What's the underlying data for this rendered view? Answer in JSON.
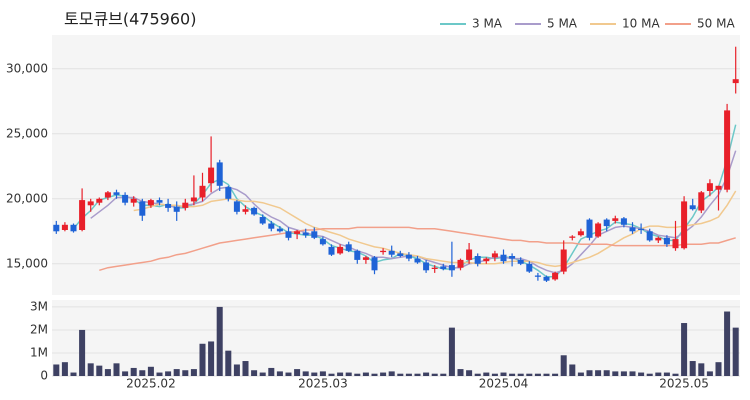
{
  "chart_data": [
    {
      "type": "candlestick",
      "title": "토모큐브(475960)",
      "up_color": "#e8202a",
      "down_color": "#1f63d6",
      "legend": "top-right",
      "open": [
        18000,
        17600,
        18000,
        17600,
        19500,
        19700,
        20100,
        20500,
        20300,
        19700,
        19800,
        19500,
        19900,
        19600,
        19400,
        19300,
        19800,
        20100,
        21200,
        22800,
        20900,
        19800,
        19000,
        19300,
        18600,
        18100,
        17700,
        17500,
        17300,
        17400,
        17500,
        16900,
        16300,
        15800,
        16500,
        16000,
        15300,
        15500,
        15900,
        16000,
        15800,
        15700,
        15400,
        15100,
        14600,
        14800,
        14900,
        14700,
        15300,
        15600,
        15200,
        15500,
        15700,
        15600,
        15300,
        15000,
        14100,
        14000,
        13800,
        14400,
        17000,
        17200,
        18400,
        17100,
        18400,
        18300,
        18500,
        17800,
        17700,
        17500,
        16800,
        17000,
        16200,
        16200,
        19500,
        19100,
        20600,
        20700,
        20700,
        28900
      ],
      "high": [
        18300,
        18200,
        18100,
        20800,
        20000,
        20100,
        20600,
        20700,
        20500,
        20200,
        20000,
        20000,
        20100,
        20000,
        19800,
        20000,
        21800,
        22000,
        24800,
        23000,
        21000,
        19900,
        19500,
        19400,
        18800,
        18300,
        17900,
        17800,
        17600,
        17700,
        17800,
        17100,
        16500,
        16500,
        16700,
        16100,
        15600,
        15600,
        16200,
        16400,
        16000,
        15900,
        15600,
        15300,
        14900,
        15000,
        16700,
        15400,
        16600,
        15800,
        15500,
        16000,
        16100,
        15800,
        15500,
        15200,
        14300,
        14100,
        14400,
        16800,
        17200,
        17700,
        18500,
        18200,
        18500,
        18700,
        18600,
        18200,
        18100,
        17700,
        17100,
        17200,
        18300,
        20200,
        20000,
        20600,
        21500,
        21000,
        27300,
        31700
      ],
      "low": [
        17300,
        17500,
        17400,
        17500,
        19000,
        19500,
        19900,
        20000,
        19500,
        19400,
        18300,
        19300,
        19500,
        19000,
        18300,
        19100,
        19500,
        19800,
        20500,
        20600,
        19800,
        18800,
        18800,
        18700,
        18000,
        17500,
        17400,
        16800,
        16900,
        17000,
        16900,
        16400,
        15600,
        15700,
        15900,
        15000,
        15000,
        14200,
        15700,
        15500,
        15500,
        15200,
        15000,
        14300,
        14300,
        14500,
        14000,
        14500,
        15000,
        14800,
        15000,
        15200,
        15000,
        14800,
        14900,
        14300,
        13700,
        13600,
        13700,
        14200,
        16800,
        17100,
        16800,
        17000,
        17500,
        18100,
        17800,
        17300,
        17300,
        16700,
        16600,
        16300,
        16000,
        16100,
        19100,
        18900,
        20200,
        19100,
        20500,
        28100
      ],
      "close": [
        17500,
        18000,
        17500,
        19900,
        19800,
        20000,
        20500,
        20300,
        19700,
        20000,
        18700,
        19900,
        19700,
        19300,
        19000,
        19700,
        20100,
        21000,
        22400,
        21000,
        20000,
        19000,
        19200,
        18800,
        18100,
        17700,
        17500,
        17000,
        17500,
        17200,
        17000,
        16500,
        15700,
        16300,
        16000,
        15300,
        15500,
        14500,
        16000,
        15700,
        15600,
        15400,
        15100,
        14500,
        14700,
        14600,
        14500,
        15300,
        16100,
        15000,
        15400,
        15800,
        15200,
        15400,
        15000,
        14400,
        14000,
        13700,
        14300,
        16100,
        17100,
        17500,
        17000,
        18100,
        17900,
        18500,
        18000,
        17500,
        17600,
        16800,
        17000,
        16500,
        16900,
        19800,
        19200,
        20500,
        21200,
        21000,
        26800,
        29200
      ],
      "series": [
        {
          "name": "3 MA",
          "color": "#6cc8c8",
          "values": [
            null,
            null,
            17700,
            18500,
            19100,
            19900,
            20100,
            20300,
            20200,
            20000,
            19500,
            19500,
            19400,
            19600,
            19300,
            19300,
            19600,
            20300,
            21200,
            21500,
            21100,
            20000,
            19400,
            19000,
            18700,
            18200,
            17800,
            17400,
            17300,
            17200,
            17200,
            16900,
            16400,
            16200,
            16000,
            15900,
            15600,
            15100,
            15300,
            15400,
            15800,
            15600,
            15400,
            15000,
            14800,
            14600,
            14600,
            14800,
            15300,
            15500,
            15500,
            15400,
            15500,
            15500,
            15200,
            14900,
            14500,
            14000,
            14000,
            14700,
            15800,
            16900,
            17200,
            17500,
            17700,
            18200,
            18100,
            18000,
            17700,
            17300,
            17100,
            16800,
            16800,
            17700,
            18600,
            19800,
            20300,
            20900,
            23000,
            25700
          ]
        },
        {
          "name": "5 MA",
          "color": "#a99ccb",
          "values": [
            null,
            null,
            null,
            null,
            18500,
            19000,
            19500,
            20100,
            20100,
            20100,
            19800,
            19700,
            19600,
            19500,
            19300,
            19500,
            19600,
            19800,
            20400,
            20800,
            20900,
            20700,
            20300,
            19600,
            19000,
            18600,
            18300,
            17800,
            17600,
            17400,
            17200,
            17100,
            16800,
            16500,
            16300,
            16000,
            15800,
            15500,
            15500,
            15400,
            15500,
            15600,
            15600,
            15300,
            15100,
            14900,
            14700,
            14700,
            15000,
            15100,
            15300,
            15500,
            15500,
            15400,
            15400,
            15200,
            14800,
            14500,
            14300,
            14500,
            15000,
            15700,
            16400,
            17200,
            17500,
            17800,
            17900,
            17800,
            17700,
            17500,
            17200,
            17100,
            17000,
            17400,
            17900,
            18600,
            19500,
            20300,
            21700,
            23700
          ]
        },
        {
          "name": "10 MA",
          "color": "#f1c98f",
          "values": [
            null,
            null,
            null,
            null,
            null,
            null,
            null,
            null,
            null,
            19100,
            19200,
            19400,
            19600,
            19500,
            19500,
            19400,
            19400,
            19500,
            19800,
            19900,
            20000,
            19900,
            19800,
            19800,
            19700,
            19500,
            19300,
            18900,
            18500,
            18100,
            17800,
            17600,
            17400,
            17200,
            16900,
            16700,
            16500,
            16300,
            16200,
            16000,
            15800,
            15700,
            15600,
            15400,
            15300,
            15200,
            15100,
            15100,
            15100,
            15000,
            15000,
            15000,
            15100,
            15200,
            15200,
            15200,
            15100,
            14900,
            14800,
            14900,
            15100,
            15300,
            15500,
            15800,
            16200,
            16600,
            17000,
            17300,
            17700,
            17900,
            17900,
            17800,
            17800,
            17900,
            18000,
            18100,
            18300,
            18600,
            19500,
            20600
          ]
        },
        {
          "name": "50 MA",
          "color": "#f2a08a",
          "values": [
            null,
            null,
            null,
            null,
            null,
            14500,
            14700,
            14800,
            14900,
            15000,
            15100,
            15200,
            15400,
            15500,
            15700,
            15800,
            16000,
            16200,
            16400,
            16600,
            16700,
            16800,
            16900,
            17000,
            17100,
            17200,
            17300,
            17400,
            17500,
            17600,
            17600,
            17700,
            17700,
            17700,
            17700,
            17800,
            17800,
            17800,
            17800,
            17800,
            17800,
            17800,
            17700,
            17700,
            17700,
            17600,
            17500,
            17400,
            17300,
            17200,
            17100,
            17000,
            16900,
            16800,
            16800,
            16700,
            16700,
            16600,
            16600,
            16600,
            16600,
            16500,
            16500,
            16500,
            16500,
            16400,
            16400,
            16400,
            16400,
            16400,
            16400,
            16400,
            16400,
            16500,
            16500,
            16500,
            16600,
            16600,
            16800,
            17000
          ]
        }
      ],
      "ylim": [
        12600,
        32600
      ],
      "yticks": [
        {
          "value": 15000,
          "label": "15,000"
        },
        {
          "value": 20000,
          "label": "20,000"
        },
        {
          "value": 25000,
          "label": "25,000"
        },
        {
          "value": 30000,
          "label": "30,000"
        }
      ],
      "grid": true
    },
    {
      "type": "bar",
      "color": "#3e4163",
      "categories": [
        null,
        null,
        null,
        null,
        null,
        null,
        null,
        null,
        null,
        null,
        null,
        "2025.02",
        null,
        null,
        null,
        null,
        null,
        null,
        null,
        null,
        null,
        null,
        null,
        null,
        null,
        null,
        null,
        null,
        null,
        null,
        null,
        "2025.03",
        null,
        null,
        null,
        null,
        null,
        null,
        null,
        null,
        null,
        null,
        null,
        null,
        null,
        null,
        null,
        null,
        null,
        null,
        null,
        null,
        "2025.04",
        null,
        null,
        null,
        null,
        null,
        null,
        null,
        null,
        null,
        null,
        null,
        null,
        null,
        null,
        null,
        null,
        null,
        null,
        null,
        null,
        "2025.05",
        null,
        null,
        null,
        null,
        null,
        null
      ],
      "values": [
        500000,
        600000,
        150000,
        2000000,
        550000,
        450000,
        300000,
        550000,
        200000,
        350000,
        250000,
        400000,
        150000,
        200000,
        300000,
        250000,
        300000,
        1400000,
        1500000,
        3000000,
        1100000,
        500000,
        650000,
        250000,
        150000,
        350000,
        200000,
        150000,
        300000,
        200000,
        150000,
        200000,
        100000,
        150000,
        150000,
        100000,
        150000,
        100000,
        150000,
        200000,
        100000,
        100000,
        100000,
        150000,
        100000,
        100000,
        2100000,
        300000,
        250000,
        100000,
        150000,
        100000,
        150000,
        100000,
        100000,
        100000,
        100000,
        100000,
        100000,
        900000,
        500000,
        150000,
        250000,
        250000,
        250000,
        200000,
        200000,
        200000,
        150000,
        100000,
        150000,
        150000,
        100000,
        2300000,
        650000,
        550000,
        200000,
        600000,
        2800000,
        2100000
      ],
      "ylim": [
        0,
        3300000
      ],
      "yticks": [
        0,
        {
          "value": 1000000,
          "label": "1M"
        },
        {
          "value": 2000000,
          "label": "2M"
        },
        {
          "value": 3000000,
          "label": "3M"
        }
      ],
      "grid": true
    }
  ]
}
